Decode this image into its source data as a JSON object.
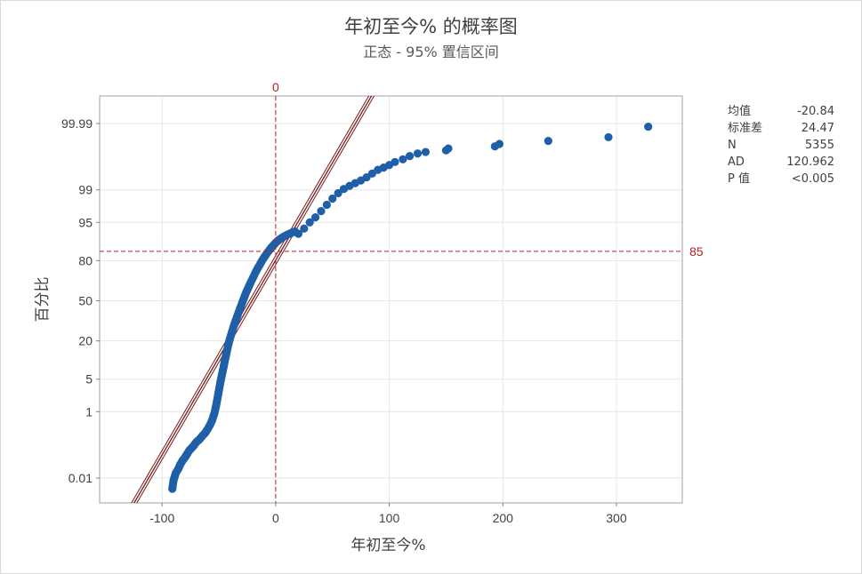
{
  "title": "年初至今% 的概率图",
  "subtitle": "正态 - 95% 置信区间",
  "stats": [
    {
      "label": "均值",
      "value": "-20.84"
    },
    {
      "label": "标准差",
      "value": "24.47"
    },
    {
      "label": "N",
      "value": "5355"
    },
    {
      "label": "AD",
      "value": "120.962"
    },
    {
      "label": "P 值",
      "value": "<0.005"
    }
  ],
  "colors": {
    "points": "#1f5fa8",
    "fit_line": "#7a1a1a",
    "reference": "#b22222",
    "grid": "#e6e6e6",
    "axis_text": "#404040"
  },
  "chart_data": {
    "type": "scatter",
    "title": "年初至今% 的概率图",
    "subtitle": "正态 - 95% 置信区间",
    "xlabel": "年初至今%",
    "ylabel": "百分比",
    "y_scale": "normal-probability",
    "xlim": [
      -155,
      358
    ],
    "ylim_percent": [
      0.001,
      99.997
    ],
    "x_ticks": [
      -100,
      0,
      100,
      200,
      300
    ],
    "x_tick_labels": [
      "-100",
      "0",
      "100",
      "200",
      "300"
    ],
    "y_ticks": [
      0.01,
      1,
      5,
      20,
      50,
      80,
      95,
      99,
      99.99
    ],
    "y_tick_labels": [
      "0.01",
      "1",
      "5",
      "20",
      "50",
      "80",
      "95",
      "99",
      "99.99"
    ],
    "reference_lines": [
      {
        "axis": "x",
        "value": 0,
        "label": "0"
      },
      {
        "axis": "y",
        "value": 85,
        "label": "85"
      }
    ],
    "fit": {
      "mean": -20.84,
      "stdev": 24.47
    },
    "confidence_level": "95%",
    "grid": true,
    "series": [
      {
        "points_upper_tail": [
          {
            "x": 20,
            "p": 92
          },
          {
            "x": 25,
            "p": 93.5
          },
          {
            "x": 30,
            "p": 95
          },
          {
            "x": 35,
            "p": 96
          },
          {
            "x": 40,
            "p": 97
          },
          {
            "x": 45,
            "p": 97.8
          },
          {
            "x": 50,
            "p": 98.4
          },
          {
            "x": 55,
            "p": 98.8
          },
          {
            "x": 60,
            "p": 99.05
          },
          {
            "x": 65,
            "p": 99.2
          },
          {
            "x": 70,
            "p": 99.32
          },
          {
            "x": 75,
            "p": 99.42
          },
          {
            "x": 80,
            "p": 99.52
          },
          {
            "x": 85,
            "p": 99.62
          },
          {
            "x": 90,
            "p": 99.7
          },
          {
            "x": 95,
            "p": 99.74
          },
          {
            "x": 100,
            "p": 99.78
          },
          {
            "x": 105,
            "p": 99.82
          },
          {
            "x": 112,
            "p": 99.85
          },
          {
            "x": 118,
            "p": 99.88
          },
          {
            "x": 125,
            "p": 99.9
          },
          {
            "x": 132,
            "p": 99.91
          },
          {
            "x": 150,
            "p": 99.92
          },
          {
            "x": 152,
            "p": 99.93
          },
          {
            "x": 193,
            "p": 99.94
          },
          {
            "x": 197,
            "p": 99.95
          },
          {
            "x": 240,
            "p": 99.96
          },
          {
            "x": 293,
            "p": 99.97
          },
          {
            "x": 328,
            "p": 99.987
          }
        ],
        "points_body": [
          {
            "x": -91,
            "p": 0.004
          },
          {
            "x": -90,
            "p": 0.008
          },
          {
            "x": -89,
            "p": 0.011
          },
          {
            "x": -88,
            "p": 0.015
          },
          {
            "x": -86,
            "p": 0.02
          },
          {
            "x": -84,
            "p": 0.03
          },
          {
            "x": -82,
            "p": 0.04
          },
          {
            "x": -80,
            "p": 0.05
          },
          {
            "x": -78,
            "p": 0.065
          },
          {
            "x": -76,
            "p": 0.085
          },
          {
            "x": -74,
            "p": 0.1
          },
          {
            "x": -72,
            "p": 0.12
          },
          {
            "x": -70,
            "p": 0.15
          },
          {
            "x": -68,
            "p": 0.17
          },
          {
            "x": -66,
            "p": 0.2
          },
          {
            "x": -64,
            "p": 0.24
          },
          {
            "x": -62,
            "p": 0.28
          },
          {
            "x": -60,
            "p": 0.35
          },
          {
            "x": -58,
            "p": 0.45
          },
          {
            "x": -56,
            "p": 0.6
          },
          {
            "x": -55,
            "p": 0.75
          },
          {
            "x": -54,
            "p": 0.9
          },
          {
            "x": -53,
            "p": 1.2
          },
          {
            "x": -52,
            "p": 1.6
          },
          {
            "x": -51,
            "p": 2.2
          },
          {
            "x": -50,
            "p": 3
          },
          {
            "x": -49,
            "p": 4
          },
          {
            "x": -48,
            "p": 5.2
          },
          {
            "x": -47,
            "p": 6.5
          },
          {
            "x": -46,
            "p": 8
          },
          {
            "x": -45,
            "p": 10
          },
          {
            "x": -44,
            "p": 12
          },
          {
            "x": -43,
            "p": 14.5
          },
          {
            "x": -42,
            "p": 17
          },
          {
            "x": -41,
            "p": 19.5
          },
          {
            "x": -40,
            "p": 22
          },
          {
            "x": -38,
            "p": 27
          },
          {
            "x": -36,
            "p": 32
          },
          {
            "x": -34,
            "p": 37
          },
          {
            "x": -32,
            "p": 42
          },
          {
            "x": -30,
            "p": 47
          },
          {
            "x": -28,
            "p": 52
          },
          {
            "x": -26,
            "p": 57
          },
          {
            "x": -24,
            "p": 61
          },
          {
            "x": -22,
            "p": 65
          },
          {
            "x": -20,
            "p": 68.5
          },
          {
            "x": -18,
            "p": 72
          },
          {
            "x": -16,
            "p": 75
          },
          {
            "x": -14,
            "p": 77.5
          },
          {
            "x": -12,
            "p": 80
          },
          {
            "x": -10,
            "p": 82
          },
          {
            "x": -8,
            "p": 83.8
          },
          {
            "x": -6,
            "p": 85.3
          },
          {
            "x": -4,
            "p": 86.7
          },
          {
            "x": -2,
            "p": 87.8
          },
          {
            "x": 0,
            "p": 88.8
          },
          {
            "x": 2,
            "p": 89.6
          },
          {
            "x": 4,
            "p": 90.3
          },
          {
            "x": 6,
            "p": 90.8
          },
          {
            "x": 8,
            "p": 91.3
          },
          {
            "x": 10,
            "p": 91.7
          },
          {
            "x": 14,
            "p": 92.3
          },
          {
            "x": 17,
            "p": 92.7
          }
        ]
      }
    ]
  }
}
